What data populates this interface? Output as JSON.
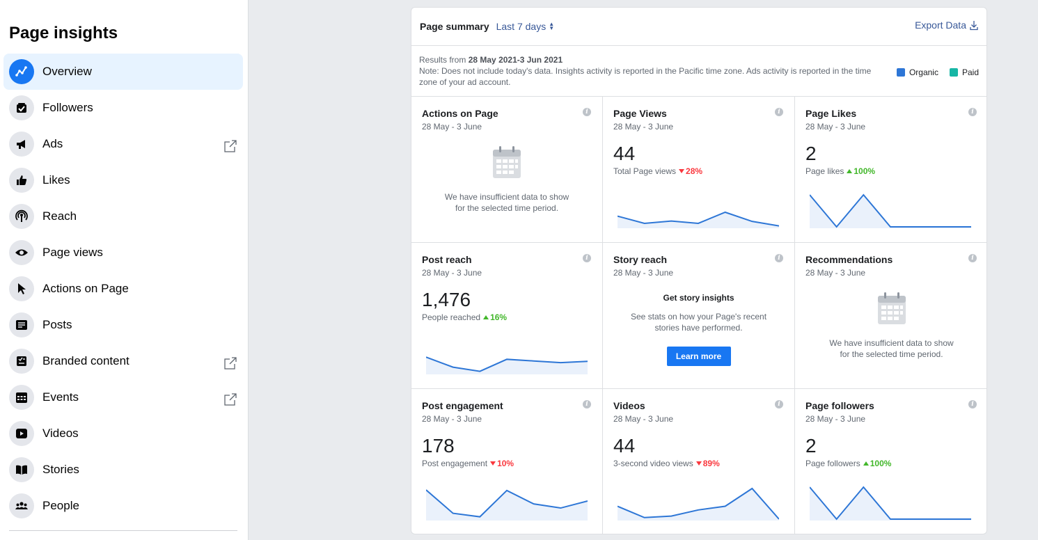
{
  "sidebar": {
    "title": "Page insights",
    "items": [
      {
        "label": "Overview",
        "icon": "chart-line-icon"
      },
      {
        "label": "Followers",
        "icon": "followers-icon"
      },
      {
        "label": "Ads",
        "icon": "megaphone-icon"
      },
      {
        "label": "Likes",
        "icon": "thumbs-up-icon"
      },
      {
        "label": "Reach",
        "icon": "broadcast-icon"
      },
      {
        "label": "Page views",
        "icon": "eye-icon"
      },
      {
        "label": "Actions on Page",
        "icon": "cursor-icon"
      },
      {
        "label": "Posts",
        "icon": "posts-icon"
      },
      {
        "label": "Branded content",
        "icon": "branded-content-icon"
      },
      {
        "label": "Events",
        "icon": "calendar-icon"
      },
      {
        "label": "Videos",
        "icon": "video-icon"
      },
      {
        "label": "Stories",
        "icon": "book-icon"
      },
      {
        "label": "People",
        "icon": "people-icon"
      }
    ]
  },
  "summary": {
    "title": "Page summary",
    "range": "Last 7 days",
    "export_label": "Export Data",
    "results_prefix": "Results from",
    "results_range": "28 May 2021-3 Jun 2021",
    "note": "Note: Does not include today's data. Insights activity is reported in the Pacific time zone. Ads activity is reported in the time zone of your ad account.",
    "legend": [
      {
        "label": "Organic",
        "color": "#2d76d6"
      },
      {
        "label": "Paid",
        "color": "#17b6a5"
      }
    ]
  },
  "cards": {
    "actions": {
      "title": "Actions on Page",
      "date": "28 May - 3 June",
      "empty_text": "We have insufficient data to show for the selected time period."
    },
    "page_views": {
      "title": "Page Views",
      "date": "28 May - 3 June",
      "value": "44",
      "sub": "Total Page views",
      "delta": "28%",
      "spark": [
        0.55,
        0.18,
        0.3,
        0.18,
        0.75,
        0.28,
        0.05
      ]
    },
    "page_likes": {
      "title": "Page Likes",
      "date": "28 May - 3 June",
      "value": "2",
      "sub": "Page likes",
      "delta": "100%",
      "spark": [
        1.0,
        0.0,
        1.0,
        0.0,
        0.0,
        0.0,
        0.0
      ]
    },
    "post_reach": {
      "title": "Post reach",
      "date": "28 May - 3 June",
      "value": "1,476",
      "sub": "People reached",
      "delta": "16%",
      "spark": [
        0.95,
        0.35,
        0.1,
        0.82,
        0.72,
        0.62,
        0.7
      ]
    },
    "story_reach": {
      "title": "Story reach",
      "date": "28 May - 3 June",
      "heading": "Get story insights",
      "text": "See stats on how your Page's recent stories have performed.",
      "button": "Learn more"
    },
    "recommendations": {
      "title": "Recommendations",
      "date": "28 May - 3 June",
      "empty_text": "We have insufficient data to show for the selected time period."
    },
    "post_engagement": {
      "title": "Post engagement",
      "date": "28 May - 3 June",
      "value": "178",
      "sub": "Post engagement",
      "delta": "10%",
      "spark": [
        1.0,
        0.2,
        0.08,
        0.98,
        0.52,
        0.38,
        0.62
      ]
    },
    "videos": {
      "title": "Videos",
      "date": "28 May - 3 June",
      "value": "44",
      "sub": "3-second video views",
      "delta": "89%",
      "spark": [
        0.42,
        0.05,
        0.1,
        0.3,
        0.42,
        1.0,
        0.0
      ]
    },
    "page_followers": {
      "title": "Page followers",
      "date": "28 May - 3 June",
      "value": "2",
      "sub": "Page followers",
      "delta": "100%",
      "spark": [
        1.0,
        0.0,
        1.0,
        0.0,
        0.0,
        0.0,
        0.0
      ]
    }
  }
}
